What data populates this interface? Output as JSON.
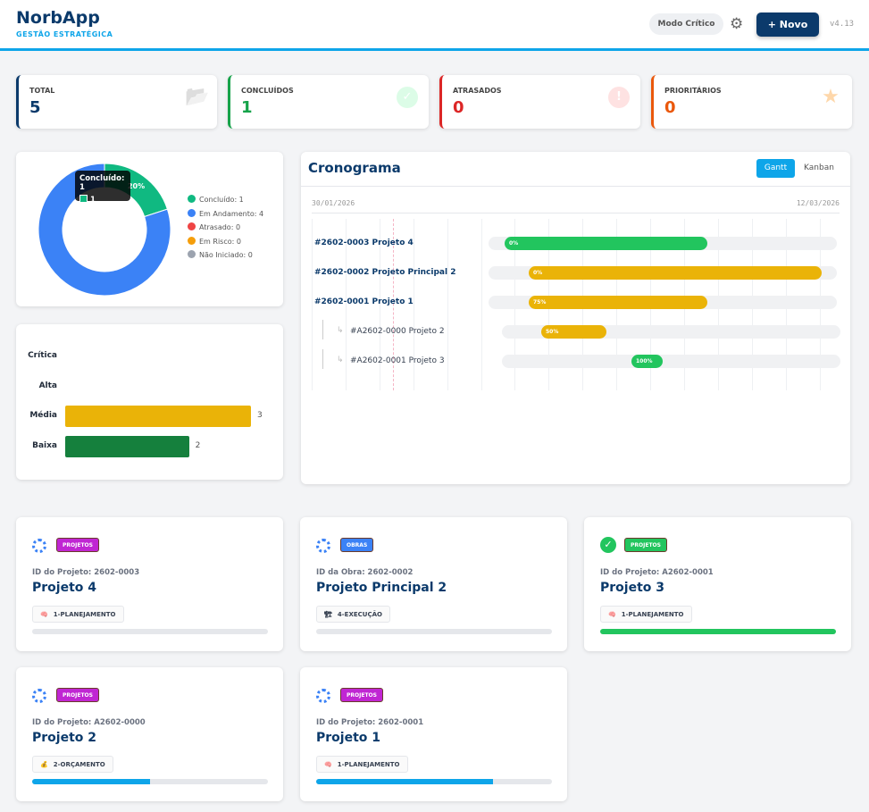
{
  "header": {
    "title": "NorbApp",
    "subtitle": "GESTÃO ESTRATÉGICA",
    "mode_label": "Modo Crítico",
    "new_label": "+ Novo",
    "version": "v4.13"
  },
  "kpis": [
    {
      "label": "TOTAL",
      "value": "5",
      "color": "#0b3a6b",
      "icon": "folder-icon"
    },
    {
      "label": "CONCLUÍDOS",
      "value": "1",
      "color": "#16a34a",
      "icon": "check-icon"
    },
    {
      "label": "ATRASADOS",
      "value": "0",
      "color": "#dc2626",
      "icon": "alert-icon"
    },
    {
      "label": "PRIORITÁRIOS",
      "value": "0",
      "color": "#ea580c",
      "icon": "star-icon"
    }
  ],
  "chart_data": [
    {
      "type": "pie",
      "donut": true,
      "slices": [
        {
          "label": "Concluído: 1",
          "value": 1,
          "color": "#10b981",
          "pct_label": "20%"
        },
        {
          "label": "Em Andamento: 4",
          "value": 4,
          "color": "#3b82f6",
          "pct_label": "80%"
        },
        {
          "label": "Atrasado: 0",
          "value": 0,
          "color": "#ef4444"
        },
        {
          "label": "Em Risco: 0",
          "value": 0,
          "color": "#f59e0b"
        },
        {
          "label": "Não Iniciado: 0",
          "value": 0,
          "color": "#9ca3af"
        }
      ],
      "legend": "right",
      "tooltip": {
        "title": "Concluído: 1",
        "value": "1"
      }
    },
    {
      "type": "bar",
      "orientation": "horizontal",
      "categories": [
        "Crítica",
        "Alta",
        "Média",
        "Baixa"
      ],
      "values": [
        0,
        0,
        3,
        2
      ],
      "colors": [
        "#dc2626",
        "#f97316",
        "#eab308",
        "#15803d"
      ],
      "xlim": [
        0,
        3
      ]
    }
  ],
  "gantt": {
    "title": "Cronograma",
    "tabs": [
      "Gantt",
      "Kanban"
    ],
    "active_tab": "Gantt",
    "start_date": "30/01/2026",
    "end_date": "12/03/2026",
    "rows": [
      {
        "label": "#2602-0003 Projeto 4",
        "progress": "0%",
        "color": "#22c55e",
        "sub": false
      },
      {
        "label": "#2602-0002 Projeto Principal 2",
        "progress": "0%",
        "color": "#eab308",
        "sub": false
      },
      {
        "label": "#2602-0001 Projeto 1",
        "progress": "75%",
        "color": "#eab308",
        "sub": false
      },
      {
        "label": "#A2602-0000 Projeto 2",
        "progress": "50%",
        "color": "#eab308",
        "sub": true
      },
      {
        "label": "#A2602-0001 Projeto 3",
        "progress": "100%",
        "color": "#22c55e",
        "sub": true
      }
    ]
  },
  "projects": [
    {
      "tag": "PROJETOS",
      "tag_color": "#c026d3",
      "id": "ID do Projeto: 2602-0003",
      "name": "Projeto 4",
      "phase": "1-PLANEJAMENTO",
      "phase_icon": "🧠",
      "progress": 0,
      "done": false
    },
    {
      "tag": "OBRAS",
      "tag_color": "#3b82f6",
      "id": "ID da Obra: 2602-0002",
      "name": "Projeto Principal 2",
      "phase": "4-EXECUÇÃO",
      "phase_icon": "🏗",
      "progress": 0,
      "done": false
    },
    {
      "tag": "PROJETOS",
      "tag_color": "#22c55e",
      "id": "ID do Projeto: A2602-0001",
      "name": "Projeto 3",
      "phase": "1-PLANEJAMENTO",
      "phase_icon": "🧠",
      "progress": 100,
      "done": true
    },
    {
      "tag": "PROJETOS",
      "tag_color": "#c026d3",
      "id": "ID do Projeto: A2602-0000",
      "name": "Projeto 2",
      "phase": "2-ORÇAMENTO",
      "phase_icon": "💰",
      "progress": 50,
      "done": false
    },
    {
      "tag": "PROJETOS",
      "tag_color": "#c026d3",
      "id": "ID do Projeto: 2602-0001",
      "name": "Projeto 1",
      "phase": "1-PLANEJAMENTO",
      "phase_icon": "🧠",
      "progress": 75,
      "done": false
    }
  ]
}
